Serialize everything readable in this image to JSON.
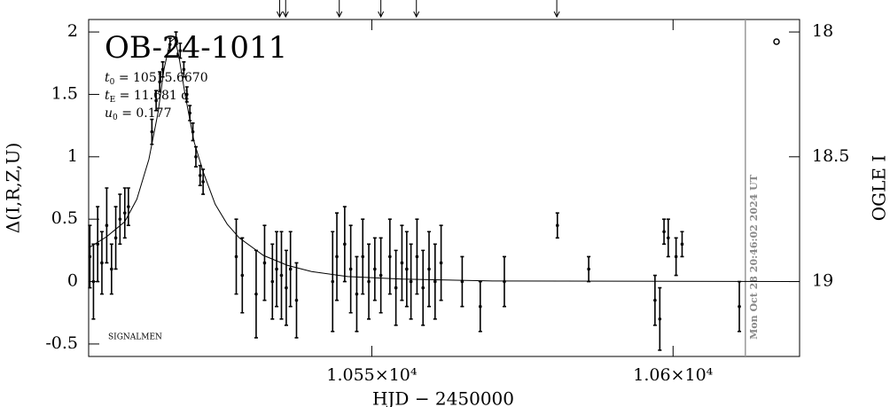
{
  "chart_data": {
    "type": "errorbar",
    "title": "OB-24-1011",
    "params": [
      {
        "symbol": "t",
        "sub": "0",
        "rest": " = 10515.6670"
      },
      {
        "symbol": "t",
        "sub": "E",
        "rest": " = 11.681 d"
      },
      {
        "symbol": "u",
        "sub": "0",
        "rest": " = 0.177"
      }
    ],
    "x_label": "HJD − 2450000",
    "y_label": "Δ(I,R,Z,U)",
    "y2_label": "OGLE I",
    "note": "SIGNALMEN",
    "timestamp": "Mon Oct 28 20:46:02 2024 UT",
    "xlim": [
      10503,
      10621
    ],
    "xticks": [
      {
        "value": 10550,
        "label": "1.055×10⁴"
      },
      {
        "value": 10600,
        "label": "1.06×10⁴"
      }
    ],
    "ylim": [
      -0.6,
      2.1
    ],
    "yticks": [
      -0.5,
      0,
      0.5,
      1,
      1.5,
      2
    ],
    "y2lim": [
      19.3,
      17.95
    ],
    "y2ticks": [
      18,
      18.5,
      19
    ],
    "epoch_markers": [
      10534.7,
      10535.7,
      10544.6,
      10551.5,
      10557.4,
      10580.7
    ],
    "cutoff_x": 10612,
    "series": [
      {
        "color": "#000000",
        "x": [
          10503.2,
          10503.8,
          10504.5,
          10505.2,
          10506,
          10506.8,
          10507.5,
          10508.2,
          10509,
          10509.6,
          10513.5,
          10514.2,
          10514.8,
          10515.3,
          10516.5,
          10517.5,
          10518.2,
          10518.8,
          10519.3,
          10519.8,
          10520.3,
          10520.8,
          10521.5,
          10522,
          10527.5,
          10528.5,
          10530.8,
          10532.2,
          10533.5,
          10534.2,
          10535,
          10535.8,
          10536.5,
          10537.5,
          10543.5,
          10544.2,
          10545.5,
          10546.5,
          10547.5,
          10548.5,
          10549.5,
          10550.5,
          10551.5,
          10553,
          10554,
          10555,
          10555.8,
          10556.5,
          10557.5,
          10558.5,
          10559.5,
          10560.5,
          10561.5,
          10565,
          10568,
          10572,
          10580.8,
          10586,
          10597,
          10597.8,
          10598.5,
          10599.2,
          10600.5,
          10601.5,
          10611
        ],
        "values": [
          0.2,
          0.0,
          0.3,
          0.15,
          0.45,
          0.1,
          0.35,
          0.5,
          0.55,
          0.6,
          1.2,
          1.45,
          1.6,
          1.7,
          1.9,
          1.95,
          1.85,
          1.7,
          1.5,
          1.35,
          1.2,
          1.0,
          0.85,
          0.8,
          0.2,
          0.05,
          -0.1,
          0.15,
          0.0,
          0.1,
          0.05,
          -0.05,
          0.1,
          -0.15,
          0.0,
          0.2,
          0.3,
          0.1,
          -0.1,
          0.2,
          0.0,
          0.1,
          0.05,
          0.2,
          -0.05,
          0.15,
          0.1,
          0.0,
          0.2,
          -0.05,
          0.1,
          0.0,
          0.15,
          0.0,
          -0.2,
          0.0,
          0.45,
          0.1,
          -0.15,
          -0.3,
          0.4,
          0.35,
          0.2,
          0.3,
          -0.2
        ],
        "errors": [
          0.25,
          0.3,
          0.3,
          0.25,
          0.3,
          0.2,
          0.25,
          0.2,
          0.2,
          0.15,
          0.1,
          0.08,
          0.08,
          0.06,
          0.05,
          0.05,
          0.06,
          0.06,
          0.06,
          0.06,
          0.07,
          0.08,
          0.08,
          0.1,
          0.3,
          0.3,
          0.35,
          0.3,
          0.3,
          0.3,
          0.35,
          0.3,
          0.3,
          0.3,
          0.4,
          0.35,
          0.3,
          0.35,
          0.3,
          0.3,
          0.3,
          0.25,
          0.3,
          0.3,
          0.3,
          0.3,
          0.3,
          0.3,
          0.3,
          0.3,
          0.3,
          0.3,
          0.3,
          0.2,
          0.2,
          0.2,
          0.1,
          0.1,
          0.2,
          0.25,
          0.1,
          0.15,
          0.15,
          0.1,
          0.2
        ]
      }
    ],
    "model": {
      "color": "#000000",
      "x": [
        10503,
        10506,
        10509,
        10511,
        10513,
        10514.5,
        10515.5,
        10516.5,
        10517.3,
        10518,
        10519,
        10520.5,
        10522,
        10524,
        10526,
        10528,
        10532,
        10536,
        10540,
        10546,
        10555,
        10570,
        10621
      ],
      "values": [
        0.27,
        0.36,
        0.48,
        0.66,
        0.98,
        1.35,
        1.7,
        1.92,
        1.95,
        1.8,
        1.5,
        1.12,
        0.88,
        0.62,
        0.46,
        0.35,
        0.21,
        0.13,
        0.08,
        0.04,
        0.02,
        0.005,
        0
      ]
    }
  }
}
